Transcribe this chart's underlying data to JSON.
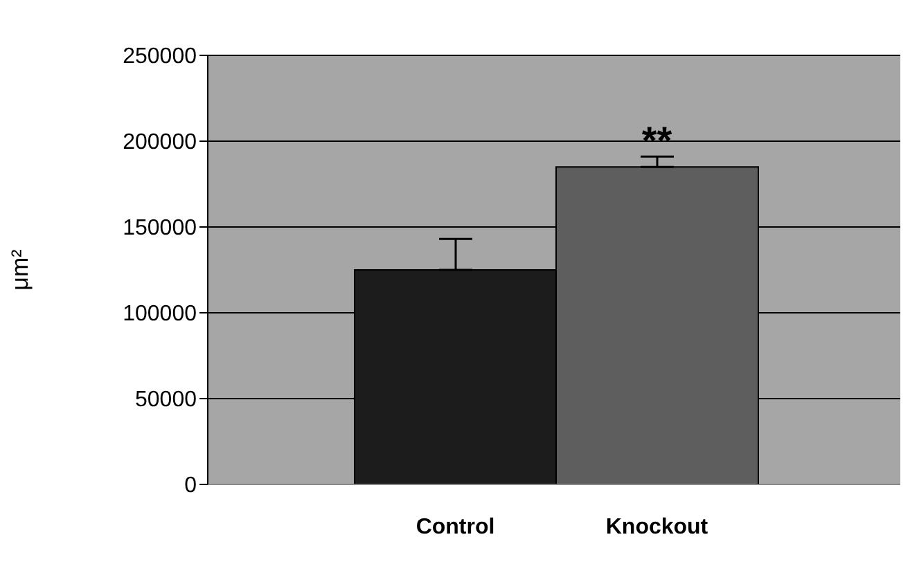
{
  "chart_data": {
    "type": "bar",
    "ylabel": "μm²",
    "categories": [
      "Control",
      "Knockout"
    ],
    "values": [
      125000,
      185000
    ],
    "colors": [
      "#1c1c1c",
      "#5e5e5e"
    ],
    "errors": [
      [
        125000,
        143000
      ],
      [
        185000,
        191000
      ]
    ],
    "ylim": [
      0,
      250000
    ],
    "yticks": [
      0,
      50000,
      100000,
      150000,
      200000,
      250000
    ],
    "grid": "y",
    "annotations": [
      "**"
    ]
  }
}
